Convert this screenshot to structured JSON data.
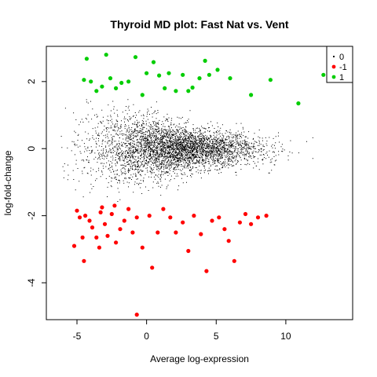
{
  "chart_data": {
    "type": "scatter",
    "title": "Thyroid MD plot: Fast Nat vs. Vent",
    "xlabel": "Average log-expression",
    "ylabel": "log-fold-change",
    "xlim": [
      -7.2,
      14.8
    ],
    "ylim": [
      -5.1,
      3.05
    ],
    "xticks": [
      "-5",
      "0",
      "5",
      "10"
    ],
    "yticks": [
      "-4",
      "-2",
      "0",
      "2"
    ],
    "grid": false,
    "legend_position": "top-right",
    "legend": [
      {
        "label": "0",
        "color": "#000000"
      },
      {
        "label": "-1",
        "color": "#ff0000"
      },
      {
        "label": "1",
        "color": "#00cd00"
      }
    ],
    "background_cloud": {
      "series": "0",
      "x_range": [
        -6.3,
        14.2
      ],
      "y_range": [
        -1.6,
        1.6
      ],
      "center": [
        2.0,
        0.0
      ]
    },
    "series": [
      {
        "name": "1",
        "color": "#00cd00",
        "points": [
          [
            -4.5,
            2.05
          ],
          [
            -4.3,
            2.68
          ],
          [
            -4.0,
            2.0
          ],
          [
            -3.6,
            1.72
          ],
          [
            -3.2,
            1.85
          ],
          [
            -2.9,
            2.8
          ],
          [
            -2.6,
            2.1
          ],
          [
            -2.2,
            1.8
          ],
          [
            -1.8,
            1.96
          ],
          [
            -1.3,
            2.0
          ],
          [
            -0.8,
            2.73
          ],
          [
            -0.3,
            1.6
          ],
          [
            0.0,
            2.25
          ],
          [
            0.5,
            2.58
          ],
          [
            0.9,
            2.18
          ],
          [
            1.3,
            1.8
          ],
          [
            1.6,
            2.25
          ],
          [
            2.1,
            1.72
          ],
          [
            2.6,
            2.2
          ],
          [
            3.0,
            1.72
          ],
          [
            3.3,
            1.82
          ],
          [
            3.8,
            2.1
          ],
          [
            4.2,
            2.62
          ],
          [
            4.5,
            2.2
          ],
          [
            5.1,
            2.35
          ],
          [
            6.0,
            2.1
          ],
          [
            7.5,
            1.6
          ],
          [
            8.9,
            2.05
          ],
          [
            10.9,
            1.35
          ],
          [
            12.7,
            2.2
          ]
        ]
      },
      {
        "name": "-1",
        "color": "#ff0000",
        "points": [
          [
            -5.2,
            -2.9
          ],
          [
            -5.0,
            -1.85
          ],
          [
            -4.8,
            -2.05
          ],
          [
            -4.6,
            -2.65
          ],
          [
            -4.4,
            -2.0
          ],
          [
            -4.1,
            -2.15
          ],
          [
            -3.9,
            -2.35
          ],
          [
            -3.6,
            -2.65
          ],
          [
            -3.4,
            -2.95
          ],
          [
            -3.2,
            -1.75
          ],
          [
            -3.0,
            -2.25
          ],
          [
            -2.8,
            -2.6
          ],
          [
            -2.5,
            -1.95
          ],
          [
            -2.2,
            -2.8
          ],
          [
            -1.9,
            -2.4
          ],
          [
            -1.6,
            -2.15
          ],
          [
            -1.3,
            -1.8
          ],
          [
            -1.0,
            -2.5
          ],
          [
            -0.7,
            -2.05
          ],
          [
            -0.3,
            -2.95
          ],
          [
            0.2,
            -2.0
          ],
          [
            0.4,
            -3.55
          ],
          [
            0.8,
            -2.5
          ],
          [
            1.2,
            -1.8
          ],
          [
            1.7,
            -2.05
          ],
          [
            2.1,
            -2.5
          ],
          [
            2.6,
            -2.2
          ],
          [
            3.0,
            -3.05
          ],
          [
            3.4,
            -2.0
          ],
          [
            3.9,
            -2.55
          ],
          [
            4.3,
            -3.65
          ],
          [
            4.7,
            -2.15
          ],
          [
            5.2,
            -2.05
          ],
          [
            5.6,
            -2.4
          ],
          [
            5.9,
            -2.75
          ],
          [
            6.3,
            -3.35
          ],
          [
            6.7,
            -2.2
          ],
          [
            7.1,
            -1.95
          ],
          [
            7.5,
            -2.25
          ],
          [
            8.0,
            -2.05
          ],
          [
            8.6,
            -2.0
          ],
          [
            -4.5,
            -3.35
          ],
          [
            -3.3,
            -1.9
          ],
          [
            -2.3,
            -1.7
          ],
          [
            -0.7,
            -4.95
          ]
        ]
      }
    ]
  }
}
